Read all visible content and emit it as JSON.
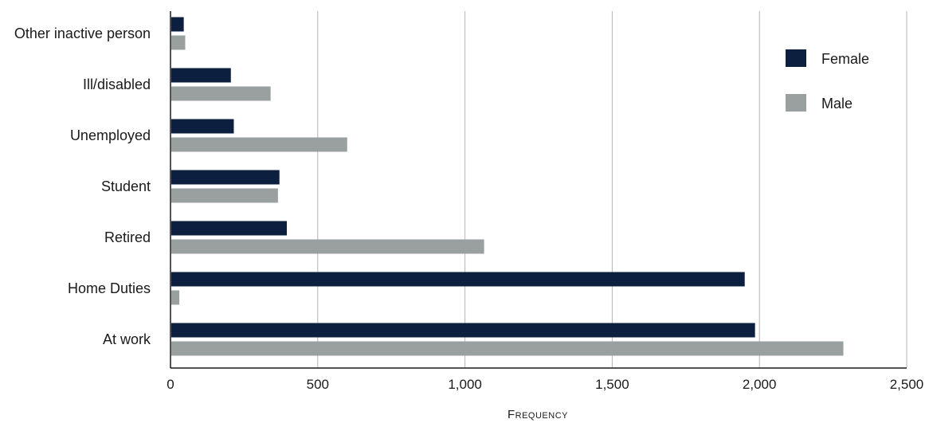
{
  "chart_data": {
    "type": "bar",
    "orientation": "horizontal",
    "categories": [
      "Other inactive person",
      "Ill/disabled",
      "Unemployed",
      "Student",
      "Retired",
      "Home Duties",
      "At work"
    ],
    "series": [
      {
        "name": "Female",
        "color": "#0d1f3f",
        "values": [
          45,
          205,
          215,
          370,
          395,
          1950,
          1985
        ]
      },
      {
        "name": "Male",
        "color": "#9aa0a0",
        "values": [
          50,
          340,
          600,
          365,
          1065,
          30,
          2285
        ]
      }
    ],
    "xlabel": "Frequency",
    "xlim": [
      0,
      2500
    ],
    "xticks": [
      0,
      500,
      1000,
      1500,
      2000,
      2500
    ],
    "xtick_labels": [
      "0",
      "500",
      "1,000",
      "1,500",
      "2,000",
      "2,500"
    ],
    "grid": "vertical",
    "legend_position": "top-right"
  }
}
